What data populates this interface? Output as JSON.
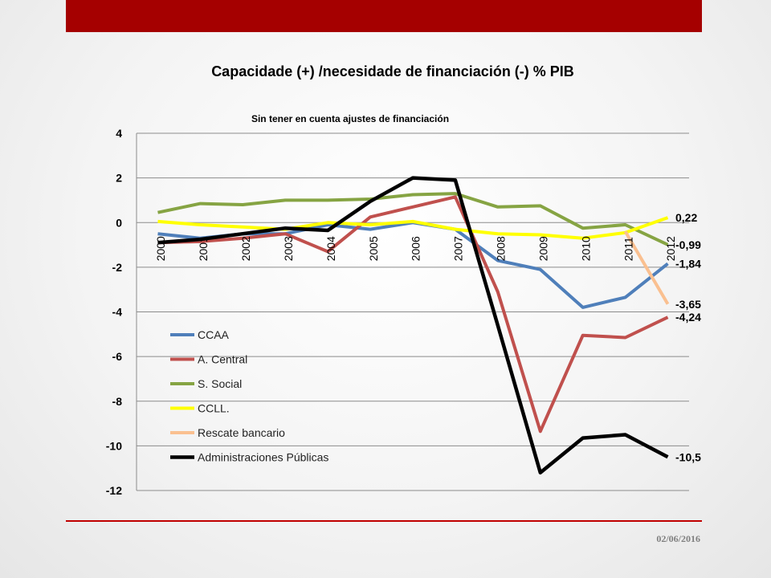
{
  "slide": {
    "date": "02/06/2016",
    "top_bar_color": "#a50000",
    "rule_color": "#c00000"
  },
  "chart_data": {
    "type": "line",
    "title": "Capacidade (+) /necesidade de financiación (-) % PIB",
    "subtitle": "Sin tener en cuenta ajustes de financiación",
    "xlabel": "",
    "ylabel": "",
    "x": [
      "2000",
      "2001",
      "2002",
      "2003",
      "2004",
      "2005",
      "2006",
      "2007",
      "2008",
      "2009",
      "2010",
      "2011",
      "2012"
    ],
    "ylim": [
      -12,
      4
    ],
    "yticks": [
      4,
      2,
      0,
      -2,
      -4,
      -6,
      -8,
      -10,
      -12
    ],
    "ytick_labels": [
      "4",
      "2",
      "0",
      "-2",
      "-4",
      "-6",
      "-8",
      "-10",
      "-12"
    ],
    "grid": "horizontal",
    "legend_position": "left-bottom inside plot",
    "series": [
      {
        "name": "CCAA",
        "color": "#4f7fba",
        "values": [
          -0.5,
          -0.7,
          -0.5,
          -0.5,
          -0.1,
          -0.3,
          0.0,
          -0.3,
          -1.7,
          -2.1,
          -3.8,
          -3.35,
          -1.84
        ]
      },
      {
        "name": "A.  Central",
        "color": "#c0504d",
        "values": [
          -0.9,
          -0.85,
          -0.7,
          -0.5,
          -1.3,
          0.25,
          0.7,
          1.15,
          -3.1,
          -9.35,
          -5.05,
          -5.15,
          -4.24
        ]
      },
      {
        "name": "S. Social",
        "color": "#86a443",
        "values": [
          0.45,
          0.85,
          0.8,
          1.0,
          1.0,
          1.05,
          1.25,
          1.3,
          0.7,
          0.75,
          -0.25,
          -0.1,
          -0.99
        ]
      },
      {
        "name": "CCLL.",
        "color": "#ffff00",
        "values": [
          0.05,
          -0.1,
          -0.2,
          -0.3,
          0.0,
          -0.1,
          0.05,
          -0.3,
          -0.5,
          -0.55,
          -0.7,
          -0.45,
          0.22
        ]
      },
      {
        "name": "Rescate bancario",
        "color": "#fac090",
        "values": [
          null,
          null,
          null,
          null,
          null,
          null,
          null,
          null,
          null,
          null,
          null,
          -0.4,
          -3.65
        ]
      },
      {
        "name": "Administraciones Públicas",
        "color": "#000000",
        "values": [
          -0.9,
          -0.75,
          -0.5,
          -0.25,
          -0.35,
          0.95,
          2.0,
          1.9,
          -4.6,
          -11.2,
          -9.65,
          -9.5,
          -10.5
        ]
      }
    ],
    "annotations": [
      {
        "text": "0,22",
        "value": 0.22
      },
      {
        "text": "-0,99",
        "value": -0.99
      },
      {
        "text": "-1,84",
        "value": -1.84
      },
      {
        "text": "-3,65",
        "value": -3.65
      },
      {
        "text": "-4,24",
        "value": -4.24
      },
      {
        "text": "-10,5",
        "value": -10.5
      }
    ]
  }
}
